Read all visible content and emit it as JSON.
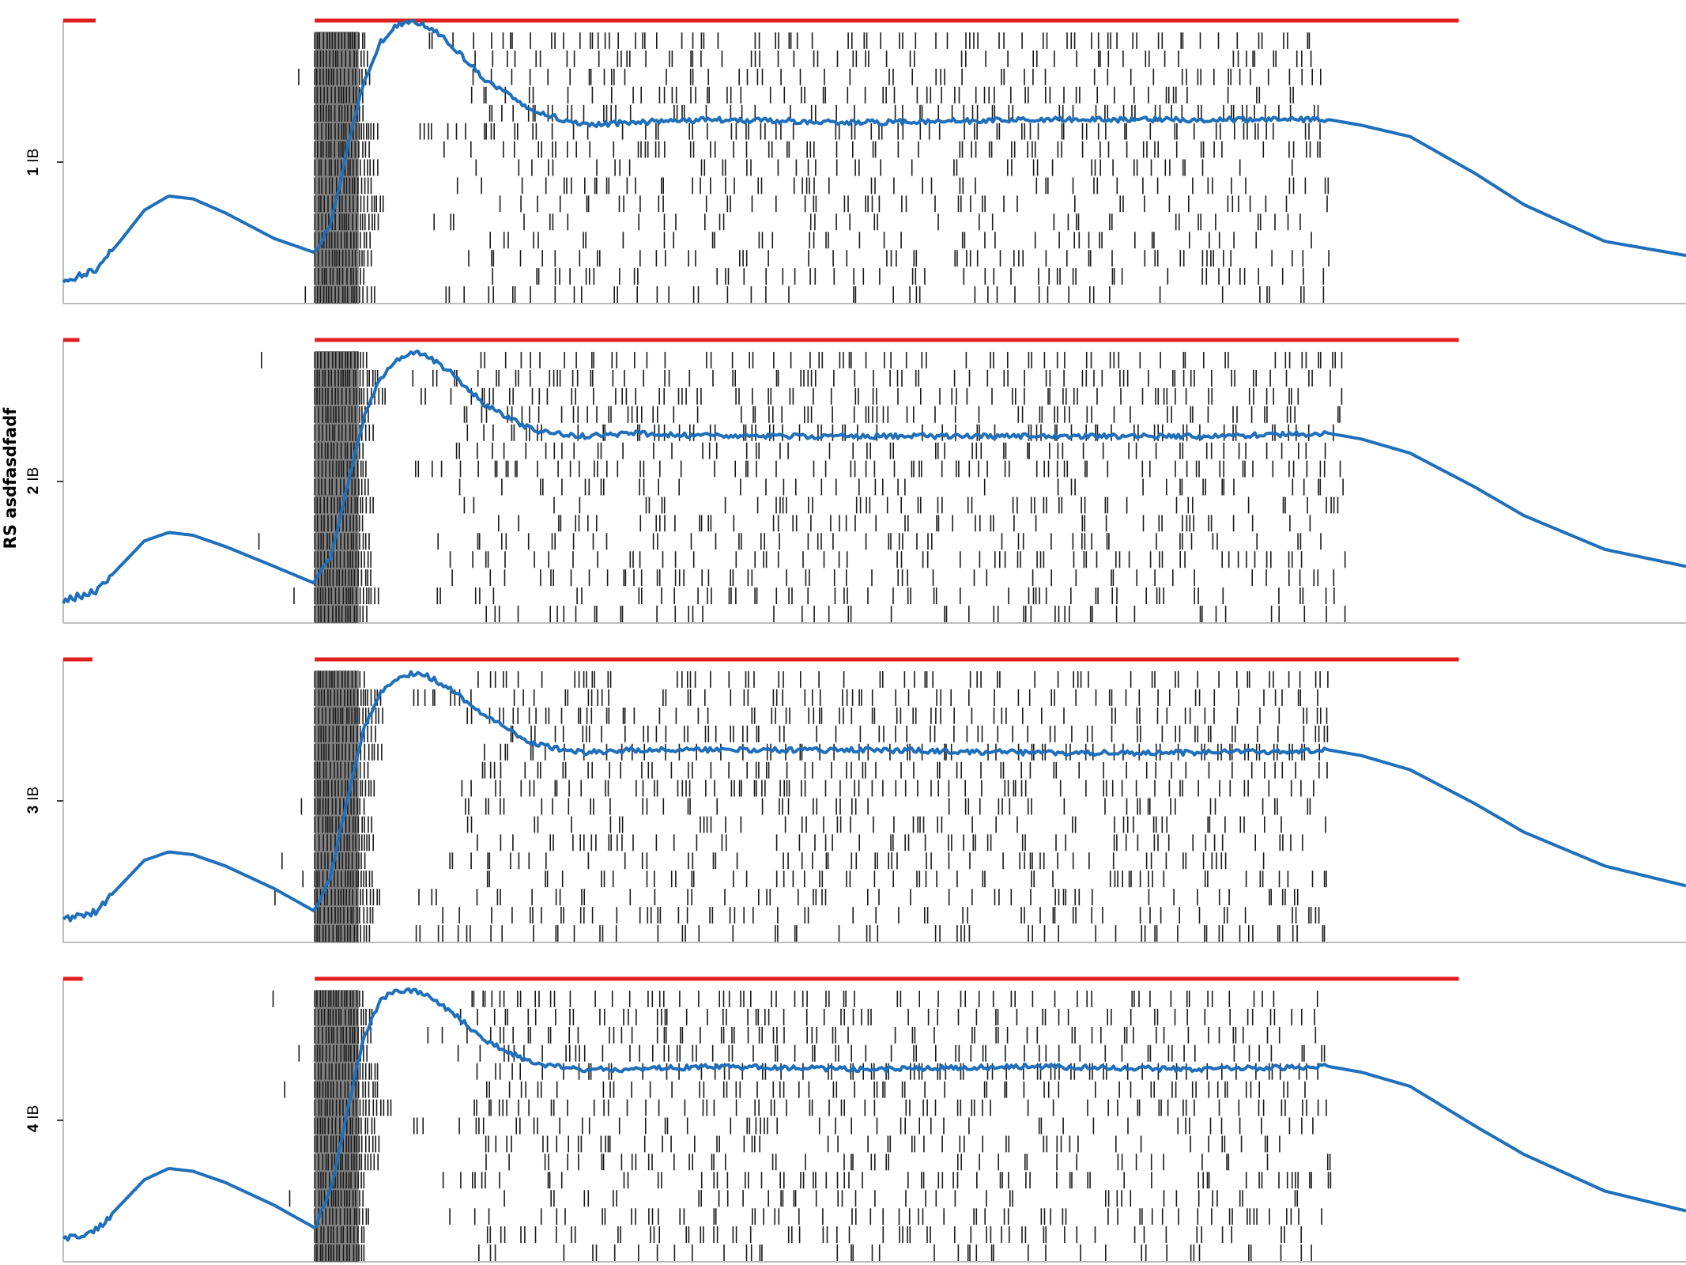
{
  "figure": {
    "ylabel": "RS asdfasdfadf"
  },
  "colors": {
    "trace": "#1f6fba",
    "stim": "#e01e1e",
    "spike": "#1a1a1a",
    "axis": "#bdbdbd"
  },
  "chart_data": [
    {
      "type": "line",
      "panel_label": {
        "number": "1",
        "sub": "IB"
      },
      "series": [
        {
          "kind": "stimulus",
          "segments": [
            [
              0.0,
              0.02
            ],
            [
              0.155,
              0.86
            ]
          ]
        },
        {
          "kind": "response",
          "x": [
            0,
            0.02,
            0.035,
            0.05,
            0.065,
            0.08,
            0.1,
            0.13,
            0.155,
            0.165,
            0.175,
            0.185,
            0.195,
            0.205,
            0.215,
            0.225,
            0.24,
            0.26,
            0.29,
            0.32,
            0.35,
            0.4,
            0.5,
            0.6,
            0.7,
            0.78,
            0.8,
            0.83,
            0.87,
            0.9,
            0.95,
            1.0
          ],
          "y": [
            0.08,
            0.12,
            0.22,
            0.33,
            0.38,
            0.37,
            0.32,
            0.23,
            0.18,
            0.28,
            0.55,
            0.78,
            0.92,
            0.98,
            1.0,
            0.98,
            0.91,
            0.79,
            0.68,
            0.63,
            0.64,
            0.65,
            0.64,
            0.65,
            0.65,
            0.65,
            0.63,
            0.59,
            0.46,
            0.35,
            0.22,
            0.17
          ]
        }
      ],
      "raster": {
        "rows": 15,
        "dense_start": 0.155,
        "dense_end": 0.185,
        "end": 0.78,
        "seed": 11
      }
    },
    {
      "type": "line",
      "panel_label": {
        "number": "2",
        "sub": "IB"
      },
      "series": [
        {
          "kind": "stimulus",
          "segments": [
            [
              0.0,
              0.01
            ],
            [
              0.155,
              0.86
            ]
          ]
        },
        {
          "kind": "response",
          "x": [
            0,
            0.02,
            0.035,
            0.05,
            0.065,
            0.08,
            0.1,
            0.13,
            0.155,
            0.165,
            0.175,
            0.185,
            0.195,
            0.205,
            0.215,
            0.225,
            0.24,
            0.26,
            0.29,
            0.32,
            0.35,
            0.4,
            0.5,
            0.6,
            0.7,
            0.78,
            0.8,
            0.83,
            0.87,
            0.9,
            0.95,
            1.0
          ],
          "y": [
            0.08,
            0.11,
            0.2,
            0.29,
            0.32,
            0.31,
            0.27,
            0.2,
            0.14,
            0.24,
            0.48,
            0.72,
            0.86,
            0.93,
            0.96,
            0.94,
            0.88,
            0.77,
            0.68,
            0.66,
            0.67,
            0.66,
            0.66,
            0.66,
            0.66,
            0.67,
            0.65,
            0.6,
            0.48,
            0.38,
            0.26,
            0.2
          ]
        }
      ],
      "raster": {
        "rows": 15,
        "dense_start": 0.155,
        "dense_end": 0.185,
        "end": 0.79,
        "seed": 23
      }
    },
    {
      "type": "line",
      "panel_label": {
        "number": "3",
        "sub": "IB"
      },
      "series": [
        {
          "kind": "stimulus",
          "segments": [
            [
              0.0,
              0.018
            ],
            [
              0.155,
              0.86
            ]
          ]
        },
        {
          "kind": "response",
          "x": [
            0,
            0.02,
            0.035,
            0.05,
            0.065,
            0.08,
            0.1,
            0.13,
            0.155,
            0.165,
            0.175,
            0.185,
            0.195,
            0.205,
            0.215,
            0.225,
            0.24,
            0.26,
            0.29,
            0.32,
            0.35,
            0.4,
            0.5,
            0.6,
            0.7,
            0.78,
            0.8,
            0.83,
            0.87,
            0.9,
            0.95,
            1.0
          ],
          "y": [
            0.08,
            0.11,
            0.2,
            0.29,
            0.32,
            0.31,
            0.27,
            0.19,
            0.11,
            0.24,
            0.5,
            0.75,
            0.88,
            0.93,
            0.95,
            0.94,
            0.89,
            0.8,
            0.7,
            0.67,
            0.68,
            0.68,
            0.68,
            0.67,
            0.67,
            0.68,
            0.66,
            0.61,
            0.49,
            0.39,
            0.27,
            0.2
          ]
        }
      ],
      "raster": {
        "rows": 15,
        "dense_start": 0.155,
        "dense_end": 0.185,
        "end": 0.78,
        "seed": 37
      }
    },
    {
      "type": "line",
      "panel_label": {
        "number": "4",
        "sub": "IB"
      },
      "series": [
        {
          "kind": "stimulus",
          "segments": [
            [
              0.0,
              0.012
            ],
            [
              0.155,
              0.86
            ]
          ]
        },
        {
          "kind": "response",
          "x": [
            0,
            0.02,
            0.035,
            0.05,
            0.065,
            0.08,
            0.1,
            0.13,
            0.155,
            0.165,
            0.175,
            0.185,
            0.195,
            0.205,
            0.215,
            0.225,
            0.24,
            0.26,
            0.29,
            0.32,
            0.35,
            0.4,
            0.5,
            0.6,
            0.7,
            0.78,
            0.8,
            0.83,
            0.87,
            0.9,
            0.95,
            1.0
          ],
          "y": [
            0.08,
            0.11,
            0.2,
            0.29,
            0.33,
            0.32,
            0.28,
            0.2,
            0.12,
            0.26,
            0.53,
            0.79,
            0.92,
            0.96,
            0.96,
            0.94,
            0.88,
            0.78,
            0.7,
            0.68,
            0.68,
            0.69,
            0.68,
            0.69,
            0.68,
            0.69,
            0.67,
            0.62,
            0.48,
            0.38,
            0.25,
            0.18
          ]
        }
      ],
      "raster": {
        "rows": 15,
        "dense_start": 0.155,
        "dense_end": 0.185,
        "end": 0.78,
        "seed": 53
      }
    }
  ]
}
